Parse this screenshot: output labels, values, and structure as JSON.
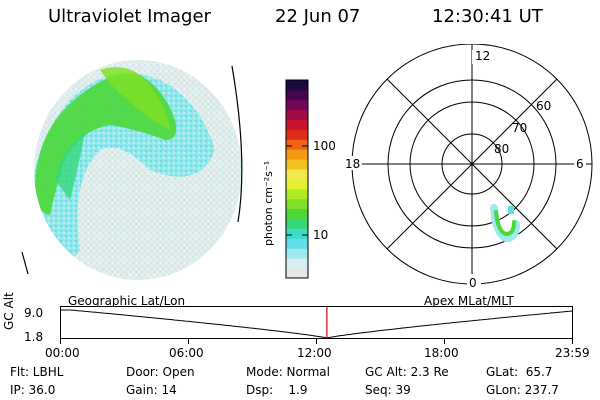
{
  "header": {
    "title": "Ultraviolet Imager",
    "date": "22 Jun 07",
    "time": "12:30:41 UT"
  },
  "colorbar": {
    "label": "photon cm⁻²s⁻¹",
    "tick_100": "100",
    "tick_10": "10",
    "colors": [
      "#e6e6e6",
      "#d8eef0",
      "#9ee8ee",
      "#5ee0e6",
      "#3ddcc8",
      "#36d87a",
      "#4cd83a",
      "#7ee028",
      "#b0ea20",
      "#e2f030",
      "#f0e850",
      "#f4c020",
      "#f49a10",
      "#ee6414",
      "#e02a1a",
      "#c81432",
      "#a00c46",
      "#74085a",
      "#44064e",
      "#1c0a3e"
    ]
  },
  "polar": {
    "labels": {
      "top": "12",
      "bottom": "0",
      "left": "18",
      "right": "6"
    },
    "rings": [
      "60",
      "70",
      "80"
    ]
  },
  "timeline": {
    "left_label": "Geographic Lat/Lon",
    "right_label": "Apex  MLat/MLT",
    "ylabel": "GC Alt",
    "y_top": "9.0",
    "y_bottom": "1.8",
    "ticks": [
      "00:00",
      "06:00",
      "12:00",
      "18:00",
      "23:59"
    ],
    "current_fraction": 0.5213
  },
  "info": {
    "filter": "Flt: LBHL",
    "ip": "IP: 36.0",
    "door": "Door: Open",
    "gain": "Gain: 14",
    "mode": "Mode: Normal",
    "dsp": "Dsp:    1.9",
    "gcalt": "GC Alt: 2.3 Re",
    "seq": "Seq: 39",
    "glat": "GLat:  65.7",
    "glon": "GLon: 237.7"
  },
  "colors": {
    "green": "#4cd83a",
    "cyan": "#6fe3e8",
    "pale": "#dfe6e6",
    "cursor": "#e00000"
  }
}
